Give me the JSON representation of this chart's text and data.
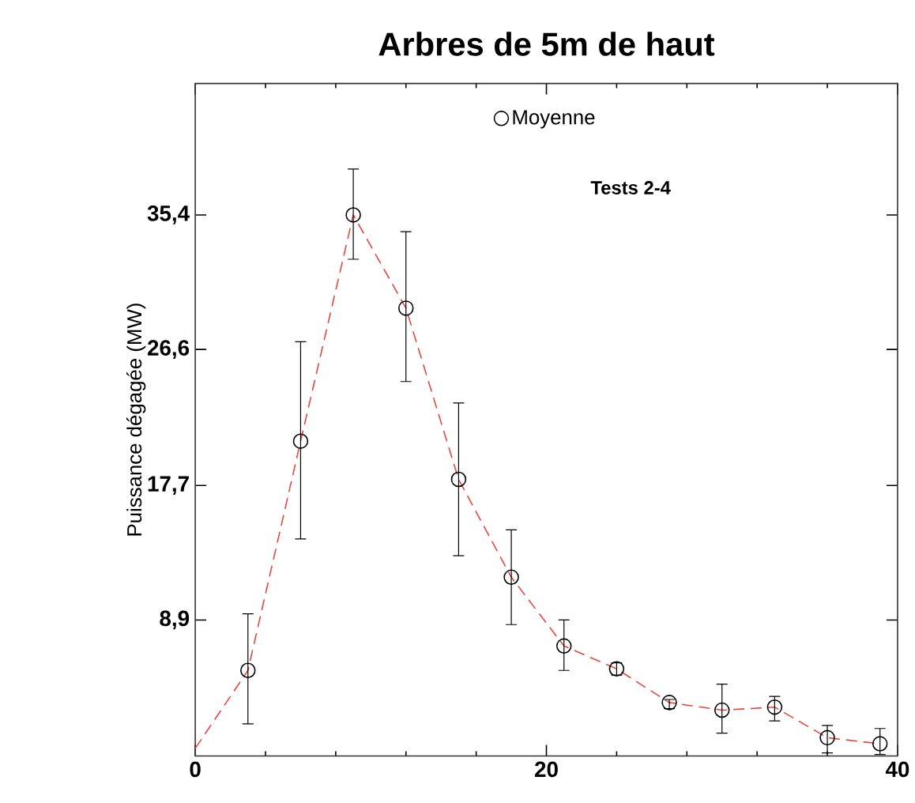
{
  "chart_data": {
    "type": "scatter",
    "title": "Arbres de 5m de haut",
    "ylabel": "Puissance dégagée (MW)",
    "annotations": [
      "Tests 2-4"
    ],
    "xlim": [
      0,
      40
    ],
    "ylim": [
      0,
      44
    ],
    "xticks": [
      0,
      20,
      40
    ],
    "yticks": [
      {
        "value": 8.9,
        "label": "8,9"
      },
      {
        "value": 17.7,
        "label": "17,7"
      },
      {
        "value": 26.6,
        "label": "26,6"
      },
      {
        "value": 35.4,
        "label": "35,4"
      }
    ],
    "legend": "top",
    "grid": false,
    "series": [
      {
        "type": "line",
        "line_style": "dashed",
        "marker": "none",
        "color": "#e8453c",
        "x": [
          0,
          3,
          6,
          9,
          12,
          15,
          18,
          21,
          24,
          27,
          30,
          33,
          36,
          39
        ],
        "values": [
          0.5,
          5.6,
          20.6,
          35.4,
          29.3,
          18.1,
          11.7,
          7.2,
          5.7,
          3.5,
          3.0,
          3.2,
          1.2,
          0.8
        ]
      },
      {
        "name": "Moyenne",
        "type": "scatter",
        "marker": "circle",
        "color": "#000000",
        "x": [
          3,
          6,
          9,
          12,
          15,
          18,
          21,
          24,
          27,
          30,
          33,
          36,
          39
        ],
        "values": [
          5.6,
          20.6,
          35.4,
          29.3,
          18.1,
          11.7,
          7.2,
          5.7,
          3.5,
          3.0,
          3.2,
          1.2,
          0.8
        ],
        "errors": [
          [
            2.1,
            9.3
          ],
          [
            14.2,
            27.1
          ],
          [
            32.5,
            38.4
          ],
          [
            24.5,
            34.3
          ],
          [
            13.1,
            23.1
          ],
          [
            8.6,
            14.8
          ],
          [
            5.6,
            8.9
          ],
          [
            5.3,
            6.1
          ],
          [
            3.1,
            3.7
          ],
          [
            1.5,
            4.7
          ],
          [
            2.3,
            3.9
          ],
          [
            0.2,
            2.0
          ],
          [
            0.1,
            1.8
          ]
        ]
      }
    ]
  }
}
